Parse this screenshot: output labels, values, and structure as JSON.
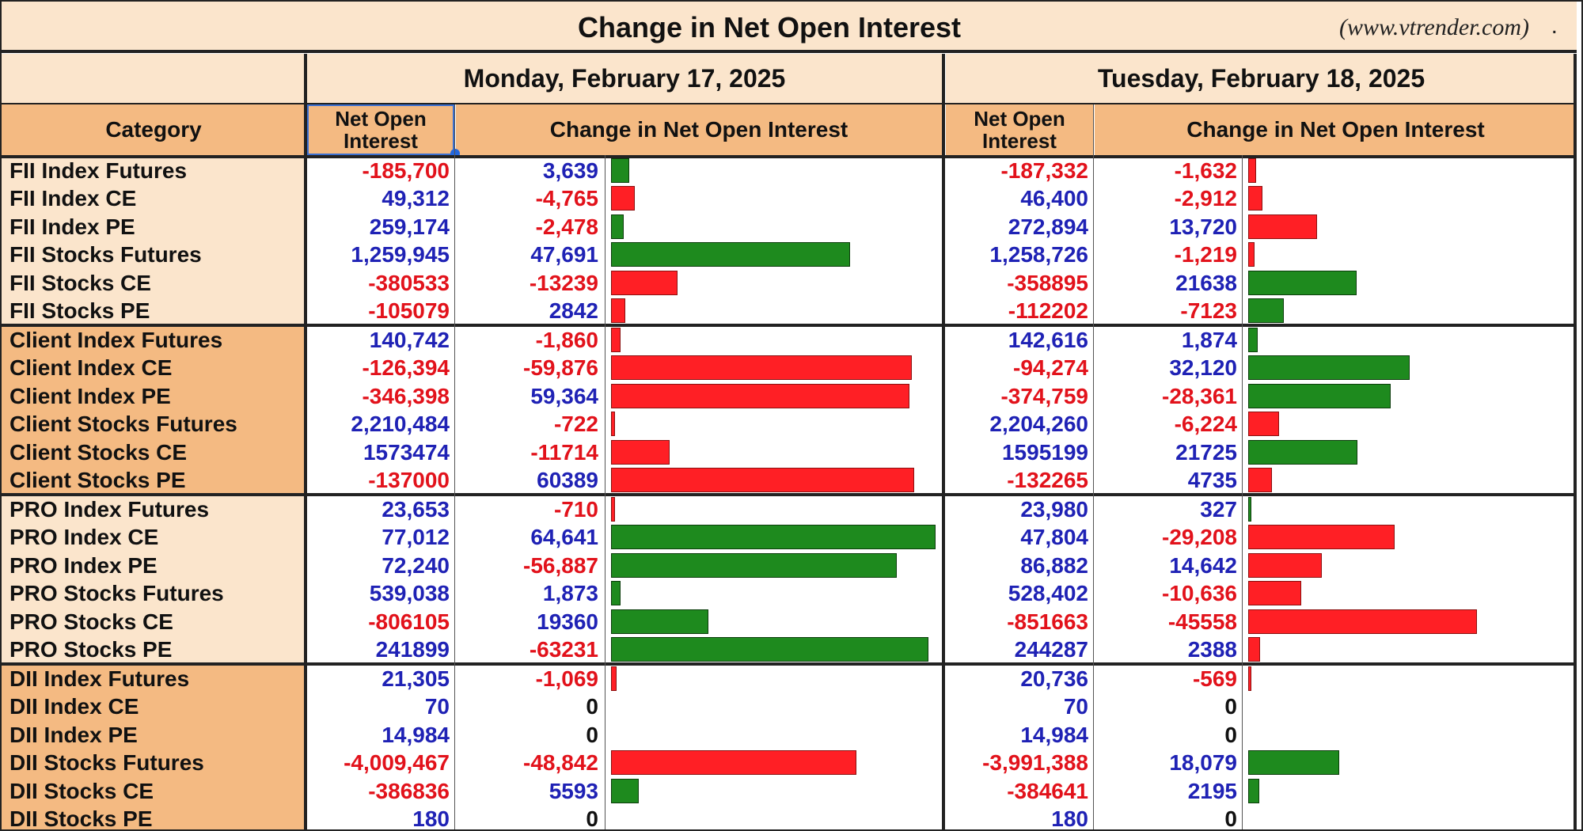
{
  "header": {
    "title": "Change in Net Open Interest",
    "site": "(www.vtrender.com)",
    "dot": "."
  },
  "days": [
    {
      "date": "Monday, February 17, 2025",
      "noi_header": "Net Open Interest",
      "change_header": "Change in Net Open Interest"
    },
    {
      "date": "Tuesday, February 18, 2025",
      "noi_header": "Net Open Interest",
      "change_header": "Change in Net Open Interest"
    }
  ],
  "category_header": "Category",
  "colors": {
    "positive_text": "#1f22b5",
    "negative_text": "#e2121b",
    "bar_green": "#1e8a1e",
    "bar_red": "#ff1f25",
    "fii_bg": "#fbe5cc",
    "client_bg": "#f4ba82",
    "pro_bg": "#fbe5cc",
    "dii_bg": "#f4ba82"
  },
  "groups": [
    {
      "name": "FII",
      "rows": [
        {
          "category": "FII Index Futures",
          "d1_noi": "-185,700",
          "d1_chg": "3,639",
          "d1_bar": 3639,
          "d1_bar_color": "green",
          "d2_noi": "-187,332",
          "d2_chg": "-1,632",
          "d2_bar": 1632,
          "d2_bar_color": "red"
        },
        {
          "category": "FII Index CE",
          "d1_noi": "49,312",
          "d1_chg": "-4,765",
          "d1_bar": 4765,
          "d1_bar_color": "red",
          "d2_noi": "46,400",
          "d2_chg": "-2,912",
          "d2_bar": 2912,
          "d2_bar_color": "red"
        },
        {
          "category": "FII Index PE",
          "d1_noi": "259,174",
          "d1_chg": "-2,478",
          "d1_bar": 2478,
          "d1_bar_color": "green",
          "d2_noi": "272,894",
          "d2_chg": "13,720",
          "d2_bar": 13720,
          "d2_bar_color": "red"
        },
        {
          "category": "FII Stocks Futures",
          "d1_noi": "1,259,945",
          "d1_chg": "47,691",
          "d1_bar": 47691,
          "d1_bar_color": "green",
          "d2_noi": "1,258,726",
          "d2_chg": "-1,219",
          "d2_bar": 1219,
          "d2_bar_color": "red"
        },
        {
          "category": "FII Stocks CE",
          "d1_noi": "-380533",
          "d1_chg": "-13239",
          "d1_bar": 13239,
          "d1_bar_color": "red",
          "d2_noi": "-358895",
          "d2_chg": "21638",
          "d2_bar": 21638,
          "d2_bar_color": "green"
        },
        {
          "category": "FII Stocks PE",
          "d1_noi": "-105079",
          "d1_chg": "2842",
          "d1_bar": 2842,
          "d1_bar_color": "red",
          "d2_noi": "-112202",
          "d2_chg": "-7123",
          "d2_bar": 7123,
          "d2_bar_color": "green"
        }
      ]
    },
    {
      "name": "Client",
      "rows": [
        {
          "category": "Client Index Futures",
          "d1_noi": "140,742",
          "d1_chg": "-1,860",
          "d1_bar": 1860,
          "d1_bar_color": "red",
          "d2_noi": "142,616",
          "d2_chg": "1,874",
          "d2_bar": 1874,
          "d2_bar_color": "green"
        },
        {
          "category": "Client Index CE",
          "d1_noi": "-126,394",
          "d1_chg": "-59,876",
          "d1_bar": 59876,
          "d1_bar_color": "red",
          "d2_noi": "-94,274",
          "d2_chg": "32,120",
          "d2_bar": 32120,
          "d2_bar_color": "green"
        },
        {
          "category": "Client Index PE",
          "d1_noi": "-346,398",
          "d1_chg": "59,364",
          "d1_bar": 59364,
          "d1_bar_color": "red",
          "d2_noi": "-374,759",
          "d2_chg": "-28,361",
          "d2_bar": 28361,
          "d2_bar_color": "green"
        },
        {
          "category": "Client Stocks Futures",
          "d1_noi": "2,210,484",
          "d1_chg": "-722",
          "d1_bar": 722,
          "d1_bar_color": "red",
          "d2_noi": "2,204,260",
          "d2_chg": "-6,224",
          "d2_bar": 6224,
          "d2_bar_color": "red"
        },
        {
          "category": "Client Stocks CE",
          "d1_noi": "1573474",
          "d1_chg": "-11714",
          "d1_bar": 11714,
          "d1_bar_color": "red",
          "d2_noi": "1595199",
          "d2_chg": "21725",
          "d2_bar": 21725,
          "d2_bar_color": "green"
        },
        {
          "category": "Client Stocks PE",
          "d1_noi": "-137000",
          "d1_chg": "60389",
          "d1_bar": 60389,
          "d1_bar_color": "red",
          "d2_noi": "-132265",
          "d2_chg": "4735",
          "d2_bar": 4735,
          "d2_bar_color": "red"
        }
      ]
    },
    {
      "name": "PRO",
      "rows": [
        {
          "category": "PRO Index Futures",
          "d1_noi": "23,653",
          "d1_chg": "-710",
          "d1_bar": 710,
          "d1_bar_color": "red",
          "d2_noi": "23,980",
          "d2_chg": "327",
          "d2_bar": 327,
          "d2_bar_color": "green"
        },
        {
          "category": "PRO Index CE",
          "d1_noi": "77,012",
          "d1_chg": "64,641",
          "d1_bar": 64641,
          "d1_bar_color": "green",
          "d2_noi": "47,804",
          "d2_chg": "-29,208",
          "d2_bar": 29208,
          "d2_bar_color": "red"
        },
        {
          "category": "PRO Index PE",
          "d1_noi": "72,240",
          "d1_chg": "-56,887",
          "d1_bar": 56887,
          "d1_bar_color": "green",
          "d2_noi": "86,882",
          "d2_chg": "14,642",
          "d2_bar": 14642,
          "d2_bar_color": "red"
        },
        {
          "category": "PRO Stocks Futures",
          "d1_noi": "539,038",
          "d1_chg": "1,873",
          "d1_bar": 1873,
          "d1_bar_color": "green",
          "d2_noi": "528,402",
          "d2_chg": "-10,636",
          "d2_bar": 10636,
          "d2_bar_color": "red"
        },
        {
          "category": "PRO Stocks CE",
          "d1_noi": "-806105",
          "d1_chg": "19360",
          "d1_bar": 19360,
          "d1_bar_color": "green",
          "d2_noi": "-851663",
          "d2_chg": "-45558",
          "d2_bar": 45558,
          "d2_bar_color": "red"
        },
        {
          "category": "PRO Stocks PE",
          "d1_noi": "241899",
          "d1_chg": "-63231",
          "d1_bar": 63231,
          "d1_bar_color": "green",
          "d2_noi": "244287",
          "d2_chg": "2388",
          "d2_bar": 2388,
          "d2_bar_color": "red"
        }
      ]
    },
    {
      "name": "DII",
      "rows": [
        {
          "category": "DII Index Futures",
          "d1_noi": "21,305",
          "d1_chg": "-1,069",
          "d1_bar": 1069,
          "d1_bar_color": "red",
          "d2_noi": "20,736",
          "d2_chg": "-569",
          "d2_bar": 569,
          "d2_bar_color": "red"
        },
        {
          "category": "DII Index CE",
          "d1_noi": "70",
          "d1_chg": "0",
          "d1_bar": 0,
          "d1_bar_color": "none",
          "d2_noi": "70",
          "d2_chg": "0",
          "d2_bar": 0,
          "d2_bar_color": "none"
        },
        {
          "category": "DII Index PE",
          "d1_noi": "14,984",
          "d1_chg": "0",
          "d1_bar": 0,
          "d1_bar_color": "none",
          "d2_noi": "14,984",
          "d2_chg": "0",
          "d2_bar": 0,
          "d2_bar_color": "none"
        },
        {
          "category": "DII Stocks Futures",
          "d1_noi": "-4,009,467",
          "d1_chg": "-48,842",
          "d1_bar": 48842,
          "d1_bar_color": "red",
          "d2_noi": "-3,991,388",
          "d2_chg": "18,079",
          "d2_bar": 18079,
          "d2_bar_color": "green"
        },
        {
          "category": "DII Stocks CE",
          "d1_noi": "-386836",
          "d1_chg": "5593",
          "d1_bar": 5593,
          "d1_bar_color": "green",
          "d2_noi": "-384641",
          "d2_chg": "2195",
          "d2_bar": 2195,
          "d2_bar_color": "green"
        },
        {
          "category": "DII Stocks PE",
          "d1_noi": "180",
          "d1_chg": "0",
          "d1_bar": 0,
          "d1_bar_color": "none",
          "d2_noi": "180",
          "d2_chg": "0",
          "d2_bar": 0,
          "d2_bar_color": "none"
        }
      ]
    }
  ]
}
